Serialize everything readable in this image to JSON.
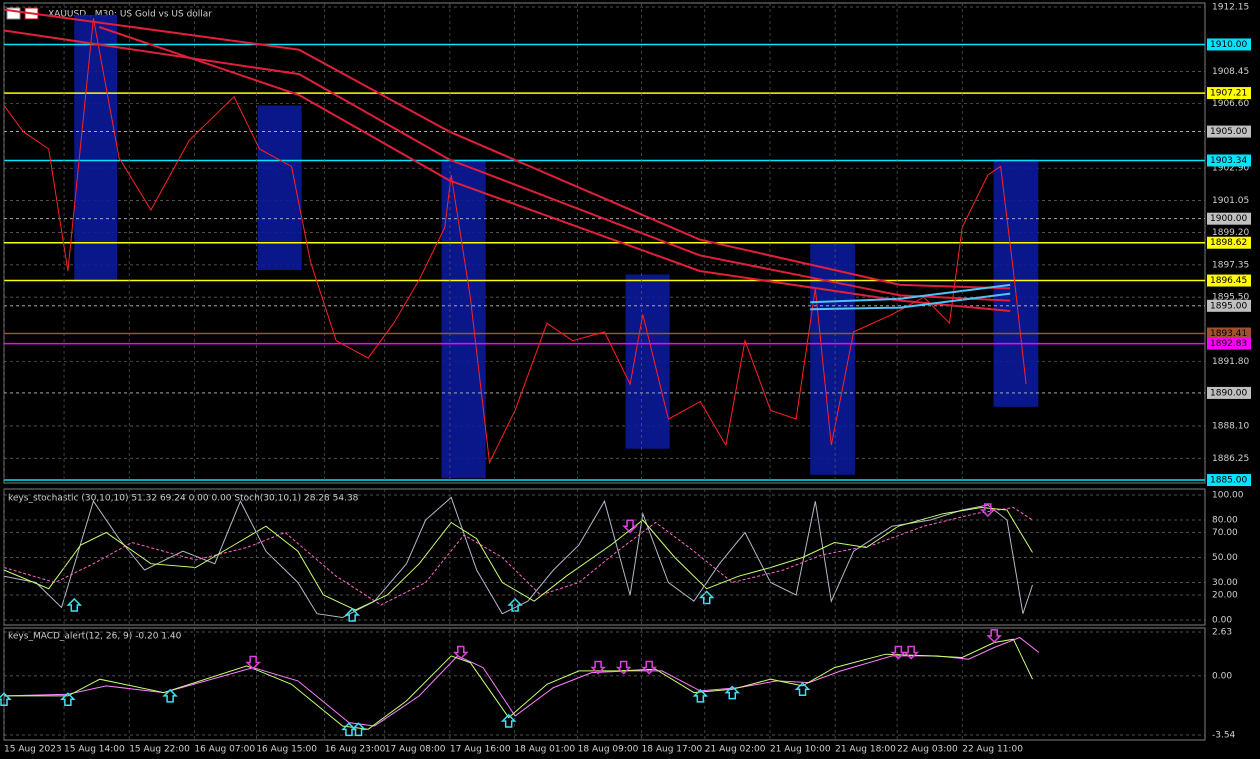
{
  "chart_data": [
    {
      "type": "line",
      "title": "XAUUSD., M30: US Gold vs US dollar",
      "xlim": [
        0,
        18.8
      ],
      "ylim": [
        1884.83,
        1912.38
      ],
      "yticks": [
        1912.15,
        1908.45,
        {
          "value": 1906.6,
          "label": "1906.60"
        },
        {
          "value": 1902.9,
          "label": "1902.90"
        },
        1901.05,
        {
          "value": 1899.2,
          "label": "1899.20"
        },
        1897.35,
        {
          "value": 1895.5,
          "label": "1895.50"
        },
        {
          "value": 1891.8,
          "label": "1891.80"
        },
        {
          "value": 1888.1,
          "label": "1888.10"
        },
        1886.25
      ],
      "zones": [
        {
          "x0": 1.1,
          "x1": 1.77,
          "y0": 1896.4,
          "y1": 1911.7
        },
        {
          "x0": 3.97,
          "x1": 4.66,
          "y0": 1897.05,
          "y1": 1906.5
        },
        {
          "x0": 6.85,
          "x1": 7.54,
          "y0": 1885.1,
          "y1": 1903.4
        },
        {
          "x0": 9.73,
          "x1": 10.42,
          "y0": 1886.8,
          "y1": 1896.8
        },
        {
          "x0": 12.62,
          "x1": 13.32,
          "y0": 1885.3,
          "y1": 1898.6
        },
        {
          "x0": 15.49,
          "x1": 16.19,
          "y0": 1889.2,
          "y1": 1903.4
        }
      ],
      "levels": [
        {
          "value": 1910,
          "label": "1910.00",
          "color": "#00e5ff",
          "style": "solid"
        },
        {
          "value": 1907.21,
          "label": "1907.21",
          "color": "#ffff00",
          "style": "solid"
        },
        {
          "value": 1905,
          "label": "1905.00",
          "color": "#c0c0c0",
          "style": "dashed"
        },
        {
          "value": 1903.34,
          "label": "1903.34",
          "color": "#00e5ff",
          "style": "solid"
        },
        {
          "value": 1900,
          "label": "1900.00",
          "color": "#c0c0c0",
          "style": "dashed"
        },
        {
          "value": 1898.62,
          "label": "1898.62",
          "color": "#ffff00",
          "style": "solid"
        },
        {
          "value": 1896.45,
          "label": "1896.45",
          "color": "#ffff00",
          "style": "solid"
        },
        {
          "value": 1895,
          "label": "1895.00",
          "color": "#c0c0c0",
          "style": "dashed"
        },
        {
          "value": 1893.41,
          "label": "1893.41",
          "color": "#a0522d",
          "style": "solid"
        },
        {
          "value": 1892.83,
          "label": "1892.83",
          "color": "#ff00ff",
          "style": "solid"
        },
        {
          "value": 1890,
          "label": "1890.00",
          "color": "#c0c0c0",
          "style": "dashed"
        },
        {
          "value": 1885,
          "label": "1885.00",
          "color": "#00e5ff",
          "style": "solid"
        }
      ],
      "series": [
        {
          "color": "#ff2020",
          "width": 1,
          "x": [
            0.0,
            0.3,
            0.7,
            1.0,
            1.4,
            1.8,
            2.3,
            2.9,
            3.6,
            4.0,
            4.5,
            4.8,
            5.2,
            5.7,
            6.1,
            6.5,
            6.9,
            7.0,
            7.3,
            7.6,
            8.0,
            8.5,
            8.9,
            9.4,
            9.8,
            10.0,
            10.4,
            10.9,
            11.3,
            11.6,
            12.0,
            12.4,
            12.7,
            12.95,
            13.3,
            13.9,
            14.4,
            14.8,
            15.0,
            15.4,
            15.6,
            15.8,
            16.0
          ],
          "values": [
            1906.5,
            1905,
            1904,
            1897,
            1911.5,
            1903.5,
            1900.5,
            1904.5,
            1907,
            1904,
            1903,
            1897.5,
            1893,
            1892,
            1894,
            1896.5,
            1899.5,
            1902.5,
            1895.5,
            1886,
            1889,
            1894,
            1893,
            1893.5,
            1890.5,
            1894.5,
            1888.5,
            1889.5,
            1887,
            1893,
            1889,
            1888.5,
            1896,
            1887,
            1893.5,
            1894.5,
            1895.5,
            1894,
            1899.5,
            1902.5,
            1903,
            1897,
            1890.5
          ]
        },
        {
          "color": "#e0203a",
          "width": 2,
          "x": [
            0,
            4.62,
            6.97,
            10.89,
            14.03,
            15.75
          ],
          "values": [
            1912,
            1909.7,
            1905,
            1898.8,
            1896.2,
            1896
          ]
        },
        {
          "color": "#e0203a",
          "width": 2,
          "x": [
            0,
            4.62,
            6.97,
            10.89,
            14.03,
            15.75
          ],
          "values": [
            1910.8,
            1908.3,
            1903.4,
            1897.9,
            1895.6,
            1895.3
          ]
        },
        {
          "color": "#e0203a",
          "width": 2,
          "x": [
            1.49,
            4.62,
            6.97,
            10.89,
            14.03,
            15.75
          ],
          "values": [
            1911,
            1907.1,
            1902.2,
            1897,
            1895.3,
            1894.7
          ]
        },
        {
          "color": "#4fc3f7",
          "width": 2,
          "x": [
            12.62,
            14.03,
            15.75
          ],
          "values": [
            1895.2,
            1895.4,
            1896.2
          ]
        },
        {
          "color": "#4fc3f7",
          "width": 2,
          "x": [
            12.62,
            14.03,
            15.75
          ],
          "values": [
            1894.8,
            1894.9,
            1895.7
          ]
        }
      ]
    },
    {
      "type": "line",
      "title": "keys_stochastic (30,10,10) 51.32 69.24 0.00 0.00 Stoch(30,10,1) 28.28 54.38",
      "xlim": [
        0,
        18.8
      ],
      "ylim": [
        -4.03,
        104.8
      ],
      "yticks": [
        {
          "value": 100,
          "label": "100.00"
        },
        {
          "value": 80,
          "label": "80.00"
        },
        {
          "value": 70,
          "label": "70.00"
        },
        {
          "value": 50,
          "label": "50.00"
        },
        {
          "value": 30,
          "label": "30.00"
        },
        {
          "value": 20,
          "label": "20.00"
        },
        {
          "value": 0,
          "label": "0.00"
        }
      ],
      "series": [
        {
          "color": "#b0b8c8",
          "width": 1,
          "x": [
            0,
            0.5,
            0.9,
            1.4,
            1.8,
            2.2,
            2.8,
            3.3,
            3.7,
            4.1,
            4.6,
            4.9,
            5.3,
            5.8,
            6.3,
            6.6,
            7.0,
            7.4,
            7.8,
            8.2,
            8.6,
            9.0,
            9.4,
            9.8,
            10.0,
            10.4,
            10.8,
            11.2,
            11.6,
            12.0,
            12.4,
            12.7,
            12.95,
            13.3,
            13.9,
            14.5,
            15.0,
            15.4,
            15.7,
            15.95,
            16.1
          ],
          "values": [
            35,
            30,
            10,
            95,
            65,
            40,
            55,
            45,
            95,
            55,
            30,
            5,
            2,
            15,
            45,
            80,
            98,
            40,
            5,
            15,
            40,
            60,
            95,
            20,
            85,
            30,
            15,
            45,
            70,
            30,
            20,
            95,
            15,
            55,
            75,
            80,
            88,
            92,
            80,
            5,
            28
          ]
        },
        {
          "color": "#ff66cc",
          "width": 1,
          "dash": true,
          "x": [
            0,
            0.8,
            1.4,
            2.0,
            3.0,
            3.8,
            4.4,
            5.2,
            5.9,
            6.6,
            7.2,
            7.8,
            8.4,
            9.0,
            9.6,
            10.2,
            10.8,
            11.4,
            12.2,
            12.8,
            13.6,
            14.4,
            15.2,
            15.8,
            16.1
          ],
          "values": [
            42,
            30,
            45,
            62,
            48,
            58,
            70,
            35,
            12,
            30,
            68,
            50,
            20,
            30,
            55,
            78,
            55,
            30,
            40,
            52,
            60,
            75,
            85,
            90,
            80
          ]
        },
        {
          "color": "#c8ff70",
          "width": 1,
          "x": [
            0,
            0.7,
            1.2,
            1.6,
            2.3,
            3.0,
            3.6,
            4.1,
            4.6,
            5.0,
            5.5,
            6.0,
            6.5,
            7.0,
            7.4,
            7.8,
            8.3,
            8.8,
            9.5,
            10.0,
            10.5,
            11.0,
            11.5,
            12.0,
            12.5,
            13.0,
            13.5,
            14.0,
            14.7,
            15.3,
            15.7,
            16.1
          ],
          "values": [
            40,
            25,
            60,
            70,
            45,
            42,
            60,
            75,
            55,
            20,
            8,
            20,
            45,
            78,
            65,
            30,
            15,
            35,
            60,
            80,
            50,
            25,
            35,
            42,
            50,
            62,
            58,
            75,
            85,
            90,
            88,
            54
          ]
        }
      ],
      "signals": {
        "up": [
          {
            "x": 1.1,
            "y": 12
          },
          {
            "x": 5.45,
            "y": 4
          },
          {
            "x": 8.0,
            "y": 12
          },
          {
            "x": 11.0,
            "y": 18
          }
        ],
        "down": [
          {
            "x": 9.8,
            "y": 75
          },
          {
            "x": 15.4,
            "y": 88
          }
        ]
      }
    },
    {
      "type": "line",
      "title": "keys_MACD_alert(12, 26, 9) -0.20 1.40",
      "xlim": [
        0,
        18.8
      ],
      "ylim": [
        -3.84,
        2.87
      ],
      "yticks": [
        2.63,
        {
          "value": 0,
          "label": "0.00"
        },
        -3.54
      ],
      "xticks": [
        {
          "value": 0,
          "label": "15 Aug 2023"
        },
        {
          "value": 0.94,
          "label": "15 Aug 14:00"
        },
        {
          "value": 1.96,
          "label": "15 Aug 22:00"
        },
        {
          "value": 2.98,
          "label": "16 Aug 07:00"
        },
        {
          "value": 3.95,
          "label": "16 Aug 15:00"
        },
        {
          "value": 5.02,
          "label": "16 Aug 23:00"
        },
        {
          "value": 5.96,
          "label": "17 Aug 08:00"
        },
        {
          "value": 6.98,
          "label": "17 Aug 16:00"
        },
        {
          "value": 7.99,
          "label": "18 Aug 01:00"
        },
        {
          "value": 8.98,
          "label": "18 Aug 09:00"
        },
        {
          "value": 9.98,
          "label": "18 Aug 17:00"
        },
        {
          "value": 10.97,
          "label": "21 Aug 02:00"
        },
        {
          "value": 11.99,
          "label": "21 Aug 10:00"
        },
        {
          "value": 13.01,
          "label": "21 Aug 18:00"
        },
        {
          "value": 13.98,
          "label": "22 Aug 03:00"
        },
        {
          "value": 15.0,
          "label": "22 Aug 11:00"
        }
      ],
      "series": [
        {
          "color": "#ff80ff",
          "width": 1,
          "x": [
            0,
            1.0,
            1.6,
            2.5,
            3.9,
            4.6,
            5.4,
            5.8,
            6.5,
            7.1,
            7.5,
            8.0,
            8.6,
            9.2,
            9.8,
            10.3,
            10.9,
            11.5,
            12.1,
            12.6,
            13.1,
            13.9,
            14.6,
            15.1,
            15.5,
            15.9,
            16.2
          ],
          "values": [
            -1.2,
            -1.1,
            -0.6,
            -1.0,
            0.5,
            -0.3,
            -2.8,
            -3.0,
            -1.2,
            1.2,
            0.5,
            -2.4,
            -0.7,
            0.2,
            0.3,
            0.3,
            -0.9,
            -0.7,
            -0.3,
            -0.4,
            0.3,
            1.2,
            1.2,
            1.0,
            1.7,
            2.3,
            1.4
          ]
        },
        {
          "color": "#c8ff70",
          "width": 1,
          "x": [
            0,
            1.0,
            1.5,
            2.5,
            3.8,
            4.5,
            5.3,
            5.7,
            6.3,
            7.0,
            7.3,
            7.9,
            8.5,
            9.0,
            9.6,
            10.2,
            10.8,
            11.4,
            12.0,
            12.5,
            13.0,
            13.8,
            14.5,
            15.0,
            15.5,
            15.8,
            16.1
          ],
          "values": [
            -1.2,
            -1.2,
            -0.2,
            -1.0,
            0.6,
            -0.5,
            -3.0,
            -3.2,
            -1.5,
            1.2,
            0.8,
            -2.5,
            -0.5,
            0.3,
            0.3,
            0.4,
            -1.0,
            -0.8,
            -0.2,
            -0.6,
            0.5,
            1.3,
            1.2,
            1.1,
            2.0,
            2.2,
            -0.2
          ]
        }
      ],
      "signals": {
        "up": [
          {
            "x": 0.0,
            "y": -1.4
          },
          {
            "x": 1.0,
            "y": -1.4
          },
          {
            "x": 2.6,
            "y": -1.2
          },
          {
            "x": 5.4,
            "y": -3.2
          },
          {
            "x": 5.55,
            "y": -3.2
          },
          {
            "x": 7.9,
            "y": -2.7
          },
          {
            "x": 10.9,
            "y": -1.2
          },
          {
            "x": 11.4,
            "y": -1.0
          },
          {
            "x": 12.5,
            "y": -0.8
          }
        ],
        "down": [
          {
            "x": 3.9,
            "y": 0.8
          },
          {
            "x": 7.15,
            "y": 1.4
          },
          {
            "x": 9.3,
            "y": 0.5
          },
          {
            "x": 9.7,
            "y": 0.5
          },
          {
            "x": 10.1,
            "y": 0.5
          },
          {
            "x": 14.0,
            "y": 1.4
          },
          {
            "x": 14.2,
            "y": 1.4
          },
          {
            "x": 15.5,
            "y": 2.4
          }
        ]
      }
    }
  ]
}
